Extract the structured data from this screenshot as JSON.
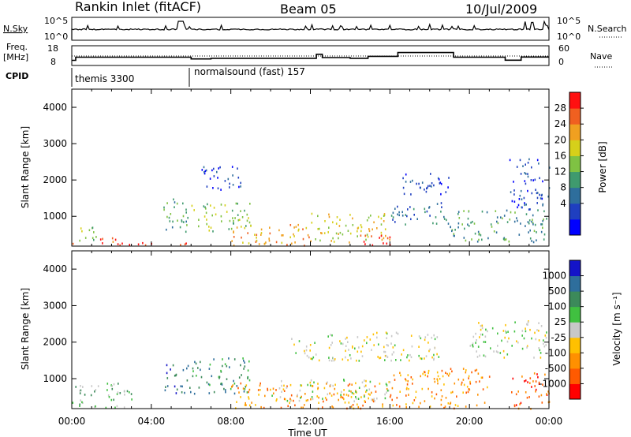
{
  "header": {
    "station": "Rankin Inlet (fitACF)",
    "beam": "Beam 05",
    "date": "10/Jul/2009"
  },
  "strips": {
    "nsky_label": "N.Sky",
    "nsky_ticks": [
      "10^5",
      "10^0"
    ],
    "nsearch_label": "N.Search",
    "nsearch_ticks": [
      "10^5",
      "10^0"
    ],
    "freq_label_1": "Freq.",
    "freq_label_2": "[MHz]",
    "freq_ticks": [
      "18",
      "8"
    ],
    "nave_label": "Nave",
    "nave_ticks": [
      "60",
      "0"
    ],
    "cpid_label": "CPID",
    "cpid_segments": [
      {
        "name": "themis 3300",
        "start_hour": 0
      },
      {
        "name": "normalsound (fast) 157",
        "start_hour": 6
      }
    ],
    "freq_steps": [
      {
        "hour": 0.0,
        "mhz": 10.5
      },
      {
        "hour": 0.2,
        "mhz": 12.3
      },
      {
        "hour": 6.0,
        "mhz": 11.3
      },
      {
        "hour": 7.0,
        "mhz": 11.7
      },
      {
        "hour": 12.3,
        "mhz": 14.0
      },
      {
        "hour": 12.6,
        "mhz": 12.1
      },
      {
        "hour": 14.0,
        "mhz": 11.7
      },
      {
        "hour": 14.9,
        "mhz": 12.8
      },
      {
        "hour": 16.4,
        "mhz": 15.0
      },
      {
        "hour": 19.2,
        "mhz": 12.3
      },
      {
        "hour": 21.8,
        "mhz": 10.6
      },
      {
        "hour": 22.6,
        "mhz": 12.4
      },
      {
        "hour": 23.5,
        "mhz": 12.4
      }
    ]
  },
  "chart_data": [
    {
      "type": "heatmap",
      "panel": "power",
      "ylabel": "Slant Range [km]",
      "xlabel": "",
      "x_ticks": [
        "00:00",
        "04:00",
        "08:00",
        "12:00",
        "16:00",
        "20:00",
        "00:00"
      ],
      "y_ticks": [
        "1000",
        "2000",
        "3000",
        "4000"
      ],
      "xlim_hours": [
        0,
        24
      ],
      "ylim_km": [
        180,
        4500
      ],
      "colorbar": {
        "title": "Power [dB]",
        "ticks": [
          "28",
          "24",
          "20",
          "16",
          "12",
          "8",
          "4"
        ],
        "colors": [
          "#0000ff",
          "#1f3fc0",
          "#2e6e9c",
          "#3f9a6e",
          "#7fc243",
          "#d6d01a",
          "#f0a020",
          "#f06020",
          "#ff1010"
        ]
      },
      "scatter_regions": [
        {
          "x": [
            0.2,
            1.2
          ],
          "y": [
            300,
            800
          ],
          "level": 4
        },
        {
          "x": [
            1.2,
            2.2
          ],
          "y": [
            250,
            500
          ],
          "level": 7
        },
        {
          "x": [
            0.0,
            6.0
          ],
          "y": [
            200,
            300
          ],
          "level": 8
        },
        {
          "x": [
            4.6,
            6.0
          ],
          "y": [
            600,
            1500
          ],
          "level": 3
        },
        {
          "x": [
            6.0,
            9.0
          ],
          "y": [
            600,
            1400
          ],
          "level": 4
        },
        {
          "x": [
            6.5,
            8.5
          ],
          "y": [
            1700,
            2400
          ],
          "level": 1
        },
        {
          "x": [
            8.0,
            12.0
          ],
          "y": [
            200,
            800
          ],
          "level": 6
        },
        {
          "x": [
            12.0,
            16.0
          ],
          "y": [
            300,
            1100
          ],
          "level": 5
        },
        {
          "x": [
            14.5,
            16.5
          ],
          "y": [
            200,
            500
          ],
          "level": 8
        },
        {
          "x": [
            16.0,
            19.0
          ],
          "y": [
            800,
            1400
          ],
          "level": 2
        },
        {
          "x": [
            16.5,
            19.0
          ],
          "y": [
            1600,
            2200
          ],
          "level": 1
        },
        {
          "x": [
            19.0,
            24.0
          ],
          "y": [
            300,
            1200
          ],
          "level": 3
        },
        {
          "x": [
            22.0,
            24.0
          ],
          "y": [
            1200,
            2600
          ],
          "level": 1
        }
      ]
    },
    {
      "type": "heatmap",
      "panel": "velocity",
      "ylabel": "Slant Range [km]",
      "xlabel": "Time UT",
      "x_ticks": [
        "00:00",
        "04:00",
        "08:00",
        "12:00",
        "16:00",
        "20:00",
        "00:00"
      ],
      "y_ticks": [
        "1000",
        "2000",
        "3000",
        "4000"
      ],
      "xlim_hours": [
        0,
        24
      ],
      "ylim_km": [
        180,
        4500
      ],
      "colorbar": {
        "title": "Velocity [m s⁻¹]",
        "ticks": [
          "1000",
          "500",
          "100",
          "25",
          "-25",
          "-100",
          "-500",
          "-1000"
        ],
        "colors": [
          "#ff0000",
          "#ff5a00",
          "#ff9000",
          "#ffc000",
          "#c8c8c8",
          "#40c040",
          "#3c8a5a",
          "#2e6e9c",
          "#1414c8"
        ]
      },
      "scatter_regions": [
        {
          "x": [
            0.0,
            3.0
          ],
          "y": [
            200,
            900
          ],
          "level": 5
        },
        {
          "x": [
            4.6,
            6.0
          ],
          "y": [
            600,
            1400
          ],
          "level": 7
        },
        {
          "x": [
            6.0,
            9.0
          ],
          "y": [
            600,
            1600
          ],
          "level": 6
        },
        {
          "x": [
            8.0,
            16.0
          ],
          "y": [
            200,
            900
          ],
          "level": 2
        },
        {
          "x": [
            10.0,
            16.0
          ],
          "y": [
            400,
            1000
          ],
          "level": 4
        },
        {
          "x": [
            11.0,
            18.5
          ],
          "y": [
            1500,
            2300
          ],
          "level": 4
        },
        {
          "x": [
            16.0,
            21.0
          ],
          "y": [
            200,
            1300
          ],
          "level": 2
        },
        {
          "x": [
            20.0,
            24.0
          ],
          "y": [
            1600,
            2600
          ],
          "level": 4
        },
        {
          "x": [
            22.0,
            24.0
          ],
          "y": [
            200,
            1200
          ],
          "level": 1
        }
      ]
    }
  ]
}
